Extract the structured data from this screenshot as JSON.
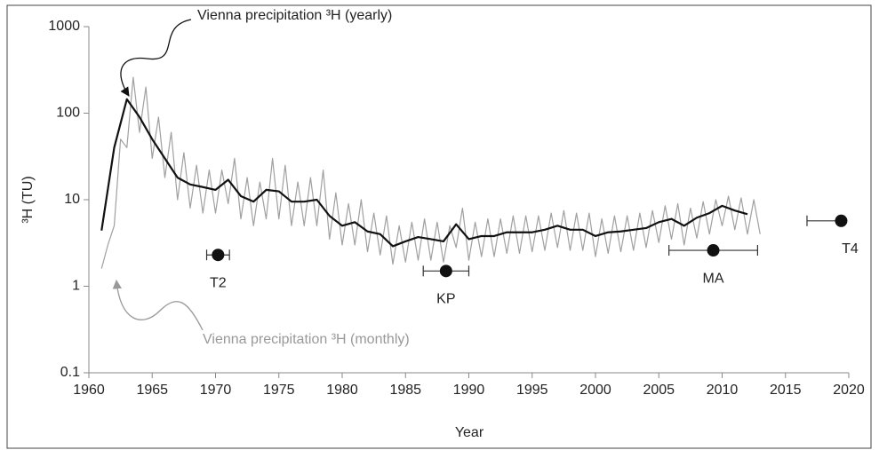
{
  "chart_data": {
    "type": "line",
    "ylabel": "³H  (TU)",
    "xlabel": "Year",
    "log_y": true,
    "xlim": [
      1960,
      2020
    ],
    "ylim": [
      0.1,
      1000
    ],
    "xticks": [
      1960,
      1965,
      1970,
      1975,
      1980,
      1985,
      1990,
      1995,
      2000,
      2005,
      2010,
      2015,
      2020
    ],
    "yticks": [
      0.1,
      1,
      10,
      100,
      1000
    ],
    "series": [
      {
        "name": "Vienna precipitation ³H (monthly)",
        "color": "#a0a0a0",
        "x": [
          1961,
          1961.5,
          1962,
          1962.5,
          1963,
          1963.5,
          1964,
          1964.5,
          1965,
          1965.5,
          1966,
          1966.5,
          1967,
          1967.5,
          1968,
          1968.5,
          1969,
          1969.5,
          1970,
          1970.5,
          1971,
          1971.5,
          1972,
          1972.5,
          1973,
          1973.5,
          1974,
          1974.5,
          1975,
          1975.5,
          1976,
          1976.5,
          1977,
          1977.5,
          1978,
          1978.5,
          1979,
          1979.5,
          1980,
          1980.5,
          1981,
          1981.5,
          1982,
          1982.5,
          1983,
          1983.5,
          1984,
          1984.5,
          1985,
          1985.5,
          1986,
          1986.5,
          1987,
          1987.5,
          1988,
          1988.5,
          1989,
          1989.5,
          1990,
          1990.5,
          1991,
          1991.5,
          1992,
          1992.5,
          1993,
          1993.5,
          1994,
          1994.5,
          1995,
          1995.5,
          1996,
          1996.5,
          1997,
          1997.5,
          1998,
          1998.5,
          1999,
          1999.5,
          2000,
          2000.5,
          2001,
          2001.5,
          2002,
          2002.5,
          2003,
          2003.5,
          2004,
          2004.5,
          2005,
          2005.5,
          2006,
          2006.5,
          2007,
          2007.5,
          2008,
          2008.5,
          2009,
          2009.5,
          2010,
          2010.5,
          2011,
          2011.5,
          2012,
          2012.5,
          2013
        ],
        "values": [
          1.6,
          3,
          5,
          50,
          40,
          260,
          60,
          200,
          30,
          90,
          18,
          60,
          10,
          35,
          8,
          25,
          7,
          22,
          7,
          22,
          9,
          30,
          6,
          18,
          5,
          16,
          6,
          30,
          6,
          25,
          5,
          16,
          5,
          18,
          5,
          22,
          3.5,
          12,
          3,
          9,
          3,
          10,
          2.5,
          7,
          2.3,
          6.5,
          1.8,
          5,
          1.9,
          5.5,
          2,
          6,
          2,
          5.5,
          1.9,
          5,
          2.8,
          8,
          2,
          5.5,
          2.2,
          6,
          2.2,
          6,
          2.4,
          6.5,
          2.4,
          6.5,
          2.5,
          6.5,
          2.6,
          7,
          2.8,
          7.5,
          2.6,
          7,
          2.6,
          7,
          2.2,
          6,
          2.4,
          6.5,
          2.5,
          6.5,
          2.6,
          7,
          2.8,
          7.5,
          3.2,
          8.5,
          3.5,
          9,
          3,
          8,
          3.6,
          9.5,
          4,
          10,
          5,
          11,
          4.5,
          10.5,
          4,
          10,
          4
        ]
      },
      {
        "name": "Vienna precipitation ³H (yearly)",
        "color": "#111111",
        "x": [
          1961,
          1962,
          1963,
          1964,
          1965,
          1966,
          1967,
          1968,
          1969,
          1970,
          1971,
          1972,
          1973,
          1974,
          1975,
          1976,
          1977,
          1978,
          1979,
          1980,
          1981,
          1982,
          1983,
          1984,
          1985,
          1986,
          1987,
          1988,
          1989,
          1990,
          1991,
          1992,
          1993,
          1994,
          1995,
          1996,
          1997,
          1998,
          1999,
          2000,
          2001,
          2002,
          2003,
          2004,
          2005,
          2006,
          2007,
          2008,
          2009,
          2010,
          2011,
          2012
        ],
        "values": [
          4.4,
          40,
          145,
          90,
          50,
          30,
          18,
          15,
          14,
          13,
          17,
          11,
          9.5,
          13,
          12.5,
          9.5,
          9.5,
          10,
          6.5,
          5,
          5.5,
          4.3,
          4,
          2.9,
          3.3,
          3.7,
          3.5,
          3.3,
          5.2,
          3.5,
          3.8,
          3.8,
          4.2,
          4.2,
          4.2,
          4.5,
          5,
          4.5,
          4.5,
          3.8,
          4.2,
          4.3,
          4.5,
          4.7,
          5.5,
          6,
          5,
          6.2,
          7,
          8.5,
          7.5,
          6.8
        ]
      }
    ],
    "points": [
      {
        "name": "T2",
        "x": 1970.2,
        "y": 2.3,
        "xerr": [
          0.9,
          0.9
        ]
      },
      {
        "name": "KP",
        "x": 1988.2,
        "y": 1.5,
        "xerr": [
          1.8,
          1.8
        ]
      },
      {
        "name": "MA",
        "x": 2009.3,
        "y": 2.6,
        "xerr": [
          3.5,
          3.5
        ]
      },
      {
        "name": "T4",
        "x": 2019.4,
        "y": 5.7,
        "xerr": [
          2.7,
          0
        ]
      }
    ],
    "point_color": "#111111"
  }
}
